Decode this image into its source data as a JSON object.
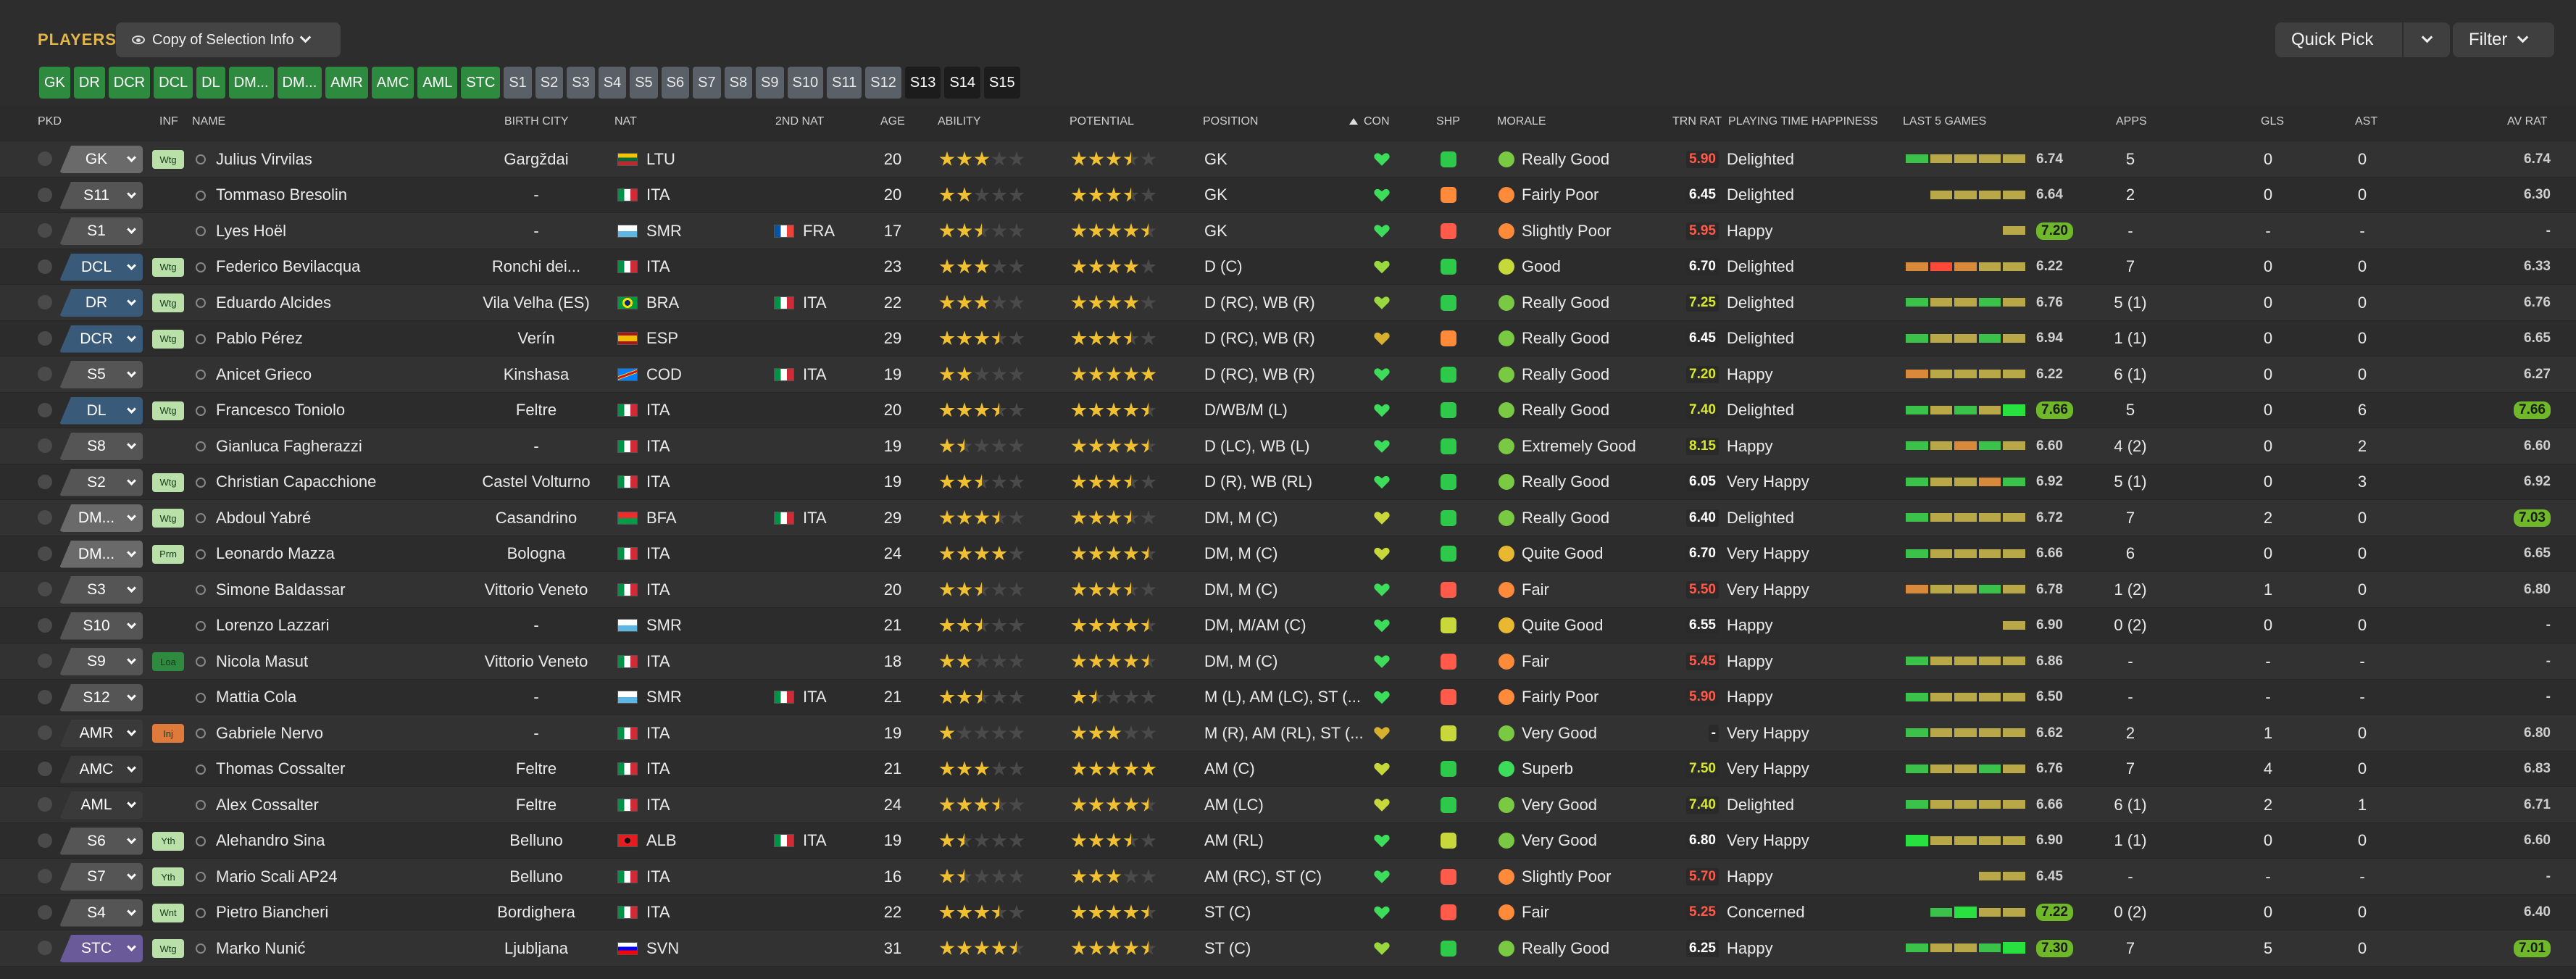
{
  "header": {
    "title": "PLAYERS",
    "view": "Copy of Selection Info",
    "quick_pick": "Quick Pick",
    "filter": "Filter"
  },
  "chips": [
    {
      "label": "GK",
      "style": "g"
    },
    {
      "label": "DR",
      "style": "g"
    },
    {
      "label": "DCR",
      "style": "g"
    },
    {
      "label": "DCL",
      "style": "g"
    },
    {
      "label": "DL",
      "style": "g"
    },
    {
      "label": "DM...",
      "style": "g"
    },
    {
      "label": "DM...",
      "style": "g"
    },
    {
      "label": "AMR",
      "style": "g"
    },
    {
      "label": "AMC",
      "style": "g"
    },
    {
      "label": "AML",
      "style": "g"
    },
    {
      "label": "STC",
      "style": "g"
    },
    {
      "label": "S1",
      "style": "s"
    },
    {
      "label": "S2",
      "style": "s"
    },
    {
      "label": "S3",
      "style": "s"
    },
    {
      "label": "S4",
      "style": "s"
    },
    {
      "label": "S5",
      "style": "s"
    },
    {
      "label": "S6",
      "style": "s"
    },
    {
      "label": "S7",
      "style": "s"
    },
    {
      "label": "S8",
      "style": "s"
    },
    {
      "label": "S9",
      "style": "s"
    },
    {
      "label": "S10",
      "style": "s"
    },
    {
      "label": "S11",
      "style": "s"
    },
    {
      "label": "S12",
      "style": "s"
    },
    {
      "label": "S13",
      "style": "d"
    },
    {
      "label": "S14",
      "style": "d"
    },
    {
      "label": "S15",
      "style": "d"
    }
  ],
  "columns": {
    "pkd": "PKD",
    "inf": "INF",
    "name": "NAME",
    "birth_city": "BIRTH CITY",
    "nat": "NAT",
    "nat2": "2ND NAT",
    "age": "AGE",
    "ability": "ABILITY",
    "potential": "POTENTIAL",
    "position": "POSITION",
    "con": "CON",
    "shp": "SHP",
    "morale": "MORALE",
    "trn": "TRN RAT",
    "pth": "PLAYING TIME HAPPINESS",
    "last5": "LAST 5 GAMES",
    "apps": "APPS",
    "gls": "GLS",
    "ast": "AST",
    "avr": "AV RAT"
  },
  "colors": {
    "green_chip": "#2e8a3e",
    "slate_chip": "#596068",
    "star": "#f0c030",
    "heart_green": "#3ddc5a",
    "heart_yellow": "#c8d83a",
    "heart_gold": "#d8b030",
    "trn_red": "#ff5a4a",
    "trn_yellow": "#d8e830",
    "trn_white": "#ffffff"
  },
  "players": [
    {
      "pkd": "GK",
      "pkd_color": "#6a6a6a",
      "inf": "Wtg",
      "inf_color": "#b8e0a8",
      "name": "Julius Virvilas",
      "city": "Gargždai",
      "nat_flag": "LTU",
      "nat": "LTU",
      "nat2_flag": "",
      "nat2": "",
      "age": "20",
      "ability": 3,
      "potential": 3.5,
      "position": "GK",
      "con": "green",
      "shp": "green",
      "mor_icon": "#7ac943",
      "morale": "Really Good",
      "trn": "5.90",
      "trn_c": "red",
      "pth": "Delighted",
      "last5": [
        "g",
        "y",
        "y",
        "y",
        "y"
      ],
      "last5_val": "6.74",
      "last5_hi": false,
      "apps": "5",
      "gls": "0",
      "ast": "0",
      "avr": "6.74",
      "avr_hi": false
    },
    {
      "pkd": "S11",
      "pkd_color": "#555",
      "inf": "",
      "inf_color": "",
      "name": "Tommaso Bresolin",
      "city": "-",
      "nat_flag": "ITA",
      "nat": "ITA",
      "nat2_flag": "",
      "nat2": "",
      "age": "20",
      "ability": 2,
      "potential": 3.5,
      "position": "GK",
      "con": "green",
      "shp": "orange",
      "mor_icon": "#ff8a3a",
      "morale": "Fairly Poor",
      "trn": "6.45",
      "trn_c": "white",
      "pth": "Delighted",
      "last5": [
        "y",
        "y",
        "y",
        "y"
      ],
      "last5_val": "6.64",
      "last5_hi": false,
      "apps": "2",
      "gls": "0",
      "ast": "0",
      "avr": "6.30",
      "avr_hi": false
    },
    {
      "pkd": "S1",
      "pkd_color": "#555",
      "inf": "",
      "inf_color": "",
      "name": "Lyes Hoël",
      "city": "-",
      "nat_flag": "SMR",
      "nat": "SMR",
      "nat2_flag": "FRA",
      "nat2": "FRA",
      "age": "17",
      "ability": 2.5,
      "potential": 4.5,
      "position": "GK",
      "con": "green",
      "shp": "red",
      "mor_icon": "#ff8a3a",
      "morale": "Slightly Poor",
      "trn": "5.95",
      "trn_c": "red",
      "pth": "Happy",
      "last5": [
        "y"
      ],
      "last5_val": "7.20",
      "last5_hi": true,
      "apps": "-",
      "gls": "-",
      "ast": "-",
      "avr": "-",
      "avr_hi": false
    },
    {
      "pkd": "DCL",
      "pkd_color": "#3a5a7a",
      "inf": "Wtg",
      "inf_color": "#b8e0a8",
      "name": "Federico Bevilacqua",
      "city": "Ronchi dei...",
      "nat_flag": "ITA",
      "nat": "ITA",
      "nat2_flag": "",
      "nat2": "",
      "age": "23",
      "ability": 3,
      "potential": 4,
      "position": "D (C)",
      "con": "yellowgreen",
      "shp": "green",
      "mor_icon": "#c8d83a",
      "morale": "Good",
      "trn": "6.70",
      "trn_c": "white",
      "pth": "Delighted",
      "last5": [
        "o",
        "r",
        "o",
        "y",
        "y"
      ],
      "last5_val": "6.22",
      "last5_hi": false,
      "apps": "7",
      "gls": "0",
      "ast": "0",
      "avr": "6.33",
      "avr_hi": false
    },
    {
      "pkd": "DR",
      "pkd_color": "#3a5a7a",
      "inf": "Wtg",
      "inf_color": "#b8e0a8",
      "name": "Eduardo Alcides",
      "city": "Vila Velha (ES)",
      "nat_flag": "BRA",
      "nat": "BRA",
      "nat2_flag": "ITA",
      "nat2": "ITA",
      "age": "22",
      "ability": 3,
      "potential": 4,
      "position": "D (RC), WB (R)",
      "con": "yellowgreen",
      "shp": "green",
      "mor_icon": "#7ac943",
      "morale": "Really Good",
      "trn": "7.25",
      "trn_c": "yellow",
      "pth": "Delighted",
      "last5": [
        "g",
        "y",
        "y",
        "g",
        "y"
      ],
      "last5_val": "6.76",
      "last5_hi": false,
      "apps": "5 (1)",
      "gls": "0",
      "ast": "0",
      "avr": "6.76",
      "avr_hi": false
    },
    {
      "pkd": "DCR",
      "pkd_color": "#3a5a7a",
      "inf": "Wtg",
      "inf_color": "#b8e0a8",
      "name": "Pablo Pérez",
      "city": "Verín",
      "nat_flag": "ESP",
      "nat": "ESP",
      "nat2_flag": "",
      "nat2": "",
      "age": "29",
      "ability": 3.5,
      "potential": 3.5,
      "position": "D (RC), WB (R)",
      "con": "gold",
      "shp": "orange",
      "mor_icon": "#7ac943",
      "morale": "Really Good",
      "trn": "6.45",
      "trn_c": "white",
      "pth": "Delighted",
      "last5": [
        "g",
        "y",
        "y",
        "g",
        "y"
      ],
      "last5_val": "6.94",
      "last5_hi": false,
      "apps": "1 (1)",
      "gls": "0",
      "ast": "0",
      "avr": "6.65",
      "avr_hi": false
    },
    {
      "pkd": "S5",
      "pkd_color": "#555",
      "inf": "",
      "inf_color": "",
      "name": "Anicet Grieco",
      "city": "Kinshasa",
      "nat_flag": "COD",
      "nat": "COD",
      "nat2_flag": "ITA",
      "nat2": "ITA",
      "age": "19",
      "ability": 2,
      "potential": 5,
      "position": "D (RC), WB (R)",
      "con": "green",
      "shp": "green",
      "mor_icon": "#7ac943",
      "morale": "Really Good",
      "trn": "7.20",
      "trn_c": "yellow",
      "pth": "Happy",
      "last5": [
        "o",
        "y",
        "y",
        "y",
        "y"
      ],
      "last5_val": "6.22",
      "last5_hi": false,
      "apps": "6 (1)",
      "gls": "0",
      "ast": "0",
      "avr": "6.27",
      "avr_hi": false
    },
    {
      "pkd": "DL",
      "pkd_color": "#3a5a7a",
      "inf": "Wtg",
      "inf_color": "#b8e0a8",
      "name": "Francesco Toniolo",
      "city": "Feltre",
      "nat_flag": "ITA",
      "nat": "ITA",
      "nat2_flag": "",
      "nat2": "",
      "age": "20",
      "ability": 3.5,
      "potential": 4.5,
      "position": "D/WB/M (L)",
      "con": "green",
      "shp": "green",
      "mor_icon": "#7ac943",
      "morale": "Really Good",
      "trn": "7.40",
      "trn_c": "yellow",
      "pth": "Delighted",
      "last5": [
        "g",
        "y",
        "g",
        "y",
        "G"
      ],
      "last5_val": "7.66",
      "last5_hi": true,
      "apps": "5",
      "gls": "0",
      "ast": "6",
      "avr": "7.66",
      "avr_hi": true
    },
    {
      "pkd": "S8",
      "pkd_color": "#555",
      "inf": "",
      "inf_color": "",
      "name": "Gianluca Fagherazzi",
      "city": "-",
      "nat_flag": "ITA",
      "nat": "ITA",
      "nat2_flag": "",
      "nat2": "",
      "age": "19",
      "ability": 1.5,
      "potential": 4.5,
      "position": "D (LC), WB (L)",
      "con": "green",
      "shp": "green",
      "mor_icon": "#7ac943",
      "morale": "Extremely Good",
      "trn": "8.15",
      "trn_c": "yellow",
      "pth": "Happy",
      "last5": [
        "g",
        "y",
        "o",
        "g",
        "y"
      ],
      "last5_val": "6.60",
      "last5_hi": false,
      "apps": "4 (2)",
      "gls": "0",
      "ast": "2",
      "avr": "6.60",
      "avr_hi": false
    },
    {
      "pkd": "S2",
      "pkd_color": "#555",
      "inf": "Wtg",
      "inf_color": "#b8e0a8",
      "name": "Christian Capacchione",
      "city": "Castel Volturno",
      "nat_flag": "ITA",
      "nat": "ITA",
      "nat2_flag": "",
      "nat2": "",
      "age": "19",
      "ability": 2.5,
      "potential": 3.5,
      "position": "D (R), WB (RL)",
      "con": "green",
      "shp": "green",
      "mor_icon": "#7ac943",
      "morale": "Really Good",
      "trn": "6.05",
      "trn_c": "white",
      "pth": "Very Happy",
      "last5": [
        "g",
        "y",
        "y",
        "o",
        "g"
      ],
      "last5_val": "6.92",
      "last5_hi": false,
      "apps": "5 (1)",
      "gls": "0",
      "ast": "3",
      "avr": "6.92",
      "avr_hi": false
    },
    {
      "pkd": "DM...",
      "pkd_color": "#6a6a6a",
      "inf": "Wtg",
      "inf_color": "#b8e0a8",
      "name": "Abdoul Yabré",
      "city": "Casandrino",
      "nat_flag": "BFA",
      "nat": "BFA",
      "nat2_flag": "ITA",
      "nat2": "ITA",
      "age": "29",
      "ability": 3.5,
      "potential": 3.5,
      "position": "DM, M (C)",
      "con": "yellow",
      "shp": "green",
      "mor_icon": "#7ac943",
      "morale": "Really Good",
      "trn": "6.40",
      "trn_c": "white",
      "pth": "Delighted",
      "last5": [
        "g",
        "y",
        "y",
        "y",
        "y"
      ],
      "last5_val": "6.72",
      "last5_hi": false,
      "apps": "7",
      "gls": "2",
      "ast": "0",
      "avr": "7.03",
      "avr_hi": true
    },
    {
      "pkd": "DM...",
      "pkd_color": "#6a6a6a",
      "inf": "Prm",
      "inf_color": "#b8e0a8",
      "name": "Leonardo Mazza",
      "city": "Bologna",
      "nat_flag": "ITA",
      "nat": "ITA",
      "nat2_flag": "",
      "nat2": "",
      "age": "24",
      "ability": 4,
      "potential": 4.5,
      "position": "DM, M (C)",
      "con": "yellow",
      "shp": "green",
      "mor_icon": "#e8b830",
      "morale": "Quite Good",
      "trn": "6.70",
      "trn_c": "white",
      "pth": "Very Happy",
      "last5": [
        "g",
        "y",
        "y",
        "y",
        "y"
      ],
      "last5_val": "6.66",
      "last5_hi": false,
      "apps": "6",
      "gls": "0",
      "ast": "0",
      "avr": "6.65",
      "avr_hi": false
    },
    {
      "pkd": "S3",
      "pkd_color": "#555",
      "inf": "",
      "inf_color": "",
      "name": "Simone Baldassar",
      "city": "Vittorio Veneto",
      "nat_flag": "ITA",
      "nat": "ITA",
      "nat2_flag": "",
      "nat2": "",
      "age": "20",
      "ability": 2.5,
      "potential": 3.5,
      "position": "DM, M (C)",
      "con": "green",
      "shp": "red",
      "mor_icon": "#ff8a3a",
      "morale": "Fair",
      "trn": "5.50",
      "trn_c": "red",
      "pth": "Very Happy",
      "last5": [
        "o",
        "y",
        "y",
        "g",
        "y"
      ],
      "last5_val": "6.78",
      "last5_hi": false,
      "apps": "1 (2)",
      "gls": "1",
      "ast": "0",
      "avr": "6.80",
      "avr_hi": false
    },
    {
      "pkd": "S10",
      "pkd_color": "#555",
      "inf": "",
      "inf_color": "",
      "name": "Lorenzo Lazzari",
      "city": "-",
      "nat_flag": "SMR",
      "nat": "SMR",
      "nat2_flag": "",
      "nat2": "",
      "age": "21",
      "ability": 2.5,
      "potential": 4.5,
      "position": "DM, M/AM (C)",
      "con": "green",
      "shp": "yellow",
      "mor_icon": "#e8b830",
      "morale": "Quite Good",
      "trn": "6.55",
      "trn_c": "white",
      "pth": "Happy",
      "last5": [
        "y"
      ],
      "last5_val": "6.90",
      "last5_hi": false,
      "apps": "0 (2)",
      "gls": "0",
      "ast": "0",
      "avr": "-",
      "avr_hi": false
    },
    {
      "pkd": "S9",
      "pkd_color": "#555",
      "inf": "Loa",
      "inf_color": "#2e8a3e",
      "name": "Nicola Masut",
      "city": "Vittorio Veneto",
      "nat_flag": "ITA",
      "nat": "ITA",
      "nat2_flag": "",
      "nat2": "",
      "age": "18",
      "ability": 2,
      "potential": 4.5,
      "position": "DM, M (C)",
      "con": "green",
      "shp": "red",
      "mor_icon": "#ff8a3a",
      "morale": "Fair",
      "trn": "5.45",
      "trn_c": "red",
      "pth": "Happy",
      "last5": [
        "g",
        "y",
        "y",
        "y",
        "y"
      ],
      "last5_val": "6.86",
      "last5_hi": false,
      "apps": "-",
      "gls": "-",
      "ast": "-",
      "avr": "-",
      "avr_hi": false
    },
    {
      "pkd": "S12",
      "pkd_color": "#555",
      "inf": "",
      "inf_color": "",
      "name": "Mattia Cola",
      "city": "-",
      "nat_flag": "SMR",
      "nat": "SMR",
      "nat2_flag": "ITA",
      "nat2": "ITA",
      "age": "21",
      "ability": 2.5,
      "potential": 1.5,
      "position": "M (L), AM (LC), ST (...",
      "con": "green",
      "shp": "red",
      "mor_icon": "#ff8a3a",
      "morale": "Fairly Poor",
      "trn": "5.90",
      "trn_c": "red",
      "pth": "Happy",
      "last5": [
        "g",
        "y",
        "y",
        "y",
        "y"
      ],
      "last5_val": "6.50",
      "last5_hi": false,
      "apps": "-",
      "gls": "-",
      "ast": "-",
      "avr": "-",
      "avr_hi": false
    },
    {
      "pkd": "AMR",
      "pkd_color": "#3a3a3a",
      "inf": "Inj",
      "inf_color": "#e07a3a",
      "name": "Gabriele Nervo",
      "city": "-",
      "nat_flag": "ITA",
      "nat": "ITA",
      "nat2_flag": "",
      "nat2": "",
      "age": "19",
      "ability": 1,
      "potential": 3,
      "position": "M (R), AM (RL), ST (...",
      "con": "gold",
      "shp": "yellow",
      "mor_icon": "#7ac943",
      "morale": "Very Good",
      "trn": "-",
      "trn_c": "white",
      "pth": "Very Happy",
      "last5": [
        "g",
        "y",
        "y",
        "y",
        "y"
      ],
      "last5_val": "6.62",
      "last5_hi": false,
      "apps": "2",
      "gls": "1",
      "ast": "0",
      "avr": "6.80",
      "avr_hi": false
    },
    {
      "pkd": "AMC",
      "pkd_color": "#3a3a3a",
      "inf": "",
      "inf_color": "",
      "name": "Thomas Cossalter",
      "city": "Feltre",
      "nat_flag": "ITA",
      "nat": "ITA",
      "nat2_flag": "",
      "nat2": "",
      "age": "21",
      "ability": 3,
      "potential": 5,
      "position": "AM (C)",
      "con": "yellow",
      "shp": "green",
      "mor_icon": "#3ddc5a",
      "morale": "Superb",
      "trn": "7.50",
      "trn_c": "yellow",
      "pth": "Very Happy",
      "last5": [
        "g",
        "y",
        "y",
        "g",
        "y"
      ],
      "last5_val": "6.76",
      "last5_hi": false,
      "apps": "7",
      "gls": "4",
      "ast": "0",
      "avr": "6.83",
      "avr_hi": false
    },
    {
      "pkd": "AML",
      "pkd_color": "#3a3a3a",
      "inf": "",
      "inf_color": "",
      "name": "Alex Cossalter",
      "city": "Feltre",
      "nat_flag": "ITA",
      "nat": "ITA",
      "nat2_flag": "",
      "nat2": "",
      "age": "24",
      "ability": 3.5,
      "potential": 4.5,
      "position": "AM (LC)",
      "con": "yellow",
      "shp": "green",
      "mor_icon": "#7ac943",
      "morale": "Very Good",
      "trn": "7.40",
      "trn_c": "yellow",
      "pth": "Delighted",
      "last5": [
        "g",
        "y",
        "y",
        "y",
        "y"
      ],
      "last5_val": "6.66",
      "last5_hi": false,
      "apps": "6 (1)",
      "gls": "2",
      "ast": "1",
      "avr": "6.71",
      "avr_hi": false
    },
    {
      "pkd": "S6",
      "pkd_color": "#555",
      "inf": "Yth",
      "inf_color": "#b8e0a8",
      "name": "Alehandro Sina",
      "city": "Belluno",
      "nat_flag": "ALB",
      "nat": "ALB",
      "nat2_flag": "ITA",
      "nat2": "ITA",
      "age": "19",
      "ability": 1.5,
      "potential": 3.5,
      "position": "AM (RL)",
      "con": "green",
      "shp": "yellow",
      "mor_icon": "#7ac943",
      "morale": "Very Good",
      "trn": "6.80",
      "trn_c": "white",
      "pth": "Very Happy",
      "last5": [
        "G",
        "y",
        "y",
        "y",
        "y"
      ],
      "last5_val": "6.90",
      "last5_hi": false,
      "apps": "1 (1)",
      "gls": "0",
      "ast": "0",
      "avr": "6.60",
      "avr_hi": false
    },
    {
      "pkd": "S7",
      "pkd_color": "#555",
      "inf": "Yth",
      "inf_color": "#b8e0a8",
      "name": "Mario Scali AP24",
      "city": "Belluno",
      "nat_flag": "ITA",
      "nat": "ITA",
      "nat2_flag": "",
      "nat2": "",
      "age": "16",
      "ability": 1.5,
      "potential": 3,
      "position": "AM (RC), ST (C)",
      "con": "green",
      "shp": "red",
      "mor_icon": "#ff8a3a",
      "morale": "Slightly Poor",
      "trn": "5.70",
      "trn_c": "red",
      "pth": "Happy",
      "last5": [
        "y",
        "y"
      ],
      "last5_val": "6.45",
      "last5_hi": false,
      "apps": "-",
      "gls": "-",
      "ast": "-",
      "avr": "-",
      "avr_hi": false
    },
    {
      "pkd": "S4",
      "pkd_color": "#555",
      "inf": "Wnt",
      "inf_color": "#b8e0a8",
      "name": "Pietro Biancheri",
      "city": "Bordighera",
      "nat_flag": "ITA",
      "nat": "ITA",
      "nat2_flag": "",
      "nat2": "",
      "age": "22",
      "ability": 3.5,
      "potential": 4.5,
      "position": "ST (C)",
      "con": "green",
      "shp": "red",
      "mor_icon": "#ff8a3a",
      "morale": "Fair",
      "trn": "5.25",
      "trn_c": "red",
      "pth": "Concerned",
      "last5": [
        "g",
        "G",
        "y",
        "y"
      ],
      "last5_val": "7.22",
      "last5_hi": true,
      "apps": "0 (2)",
      "gls": "0",
      "ast": "0",
      "avr": "6.40",
      "avr_hi": false
    },
    {
      "pkd": "STC",
      "pkd_color": "#6a5a9a",
      "inf": "Wtg",
      "inf_color": "#b8e0a8",
      "name": "Marko Nunić",
      "city": "Ljubljana",
      "nat_flag": "SVN",
      "nat": "SVN",
      "nat2_flag": "",
      "nat2": "",
      "age": "31",
      "ability": 4.5,
      "potential": 4.5,
      "position": "ST (C)",
      "con": "yellowgreen",
      "shp": "green",
      "mor_icon": "#7ac943",
      "morale": "Really Good",
      "trn": "6.25",
      "trn_c": "white",
      "pth": "Happy",
      "last5": [
        "g",
        "y",
        "y",
        "g",
        "G"
      ],
      "last5_val": "7.30",
      "last5_hi": true,
      "apps": "7",
      "gls": "5",
      "ast": "0",
      "avr": "7.01",
      "avr_hi": true
    }
  ]
}
